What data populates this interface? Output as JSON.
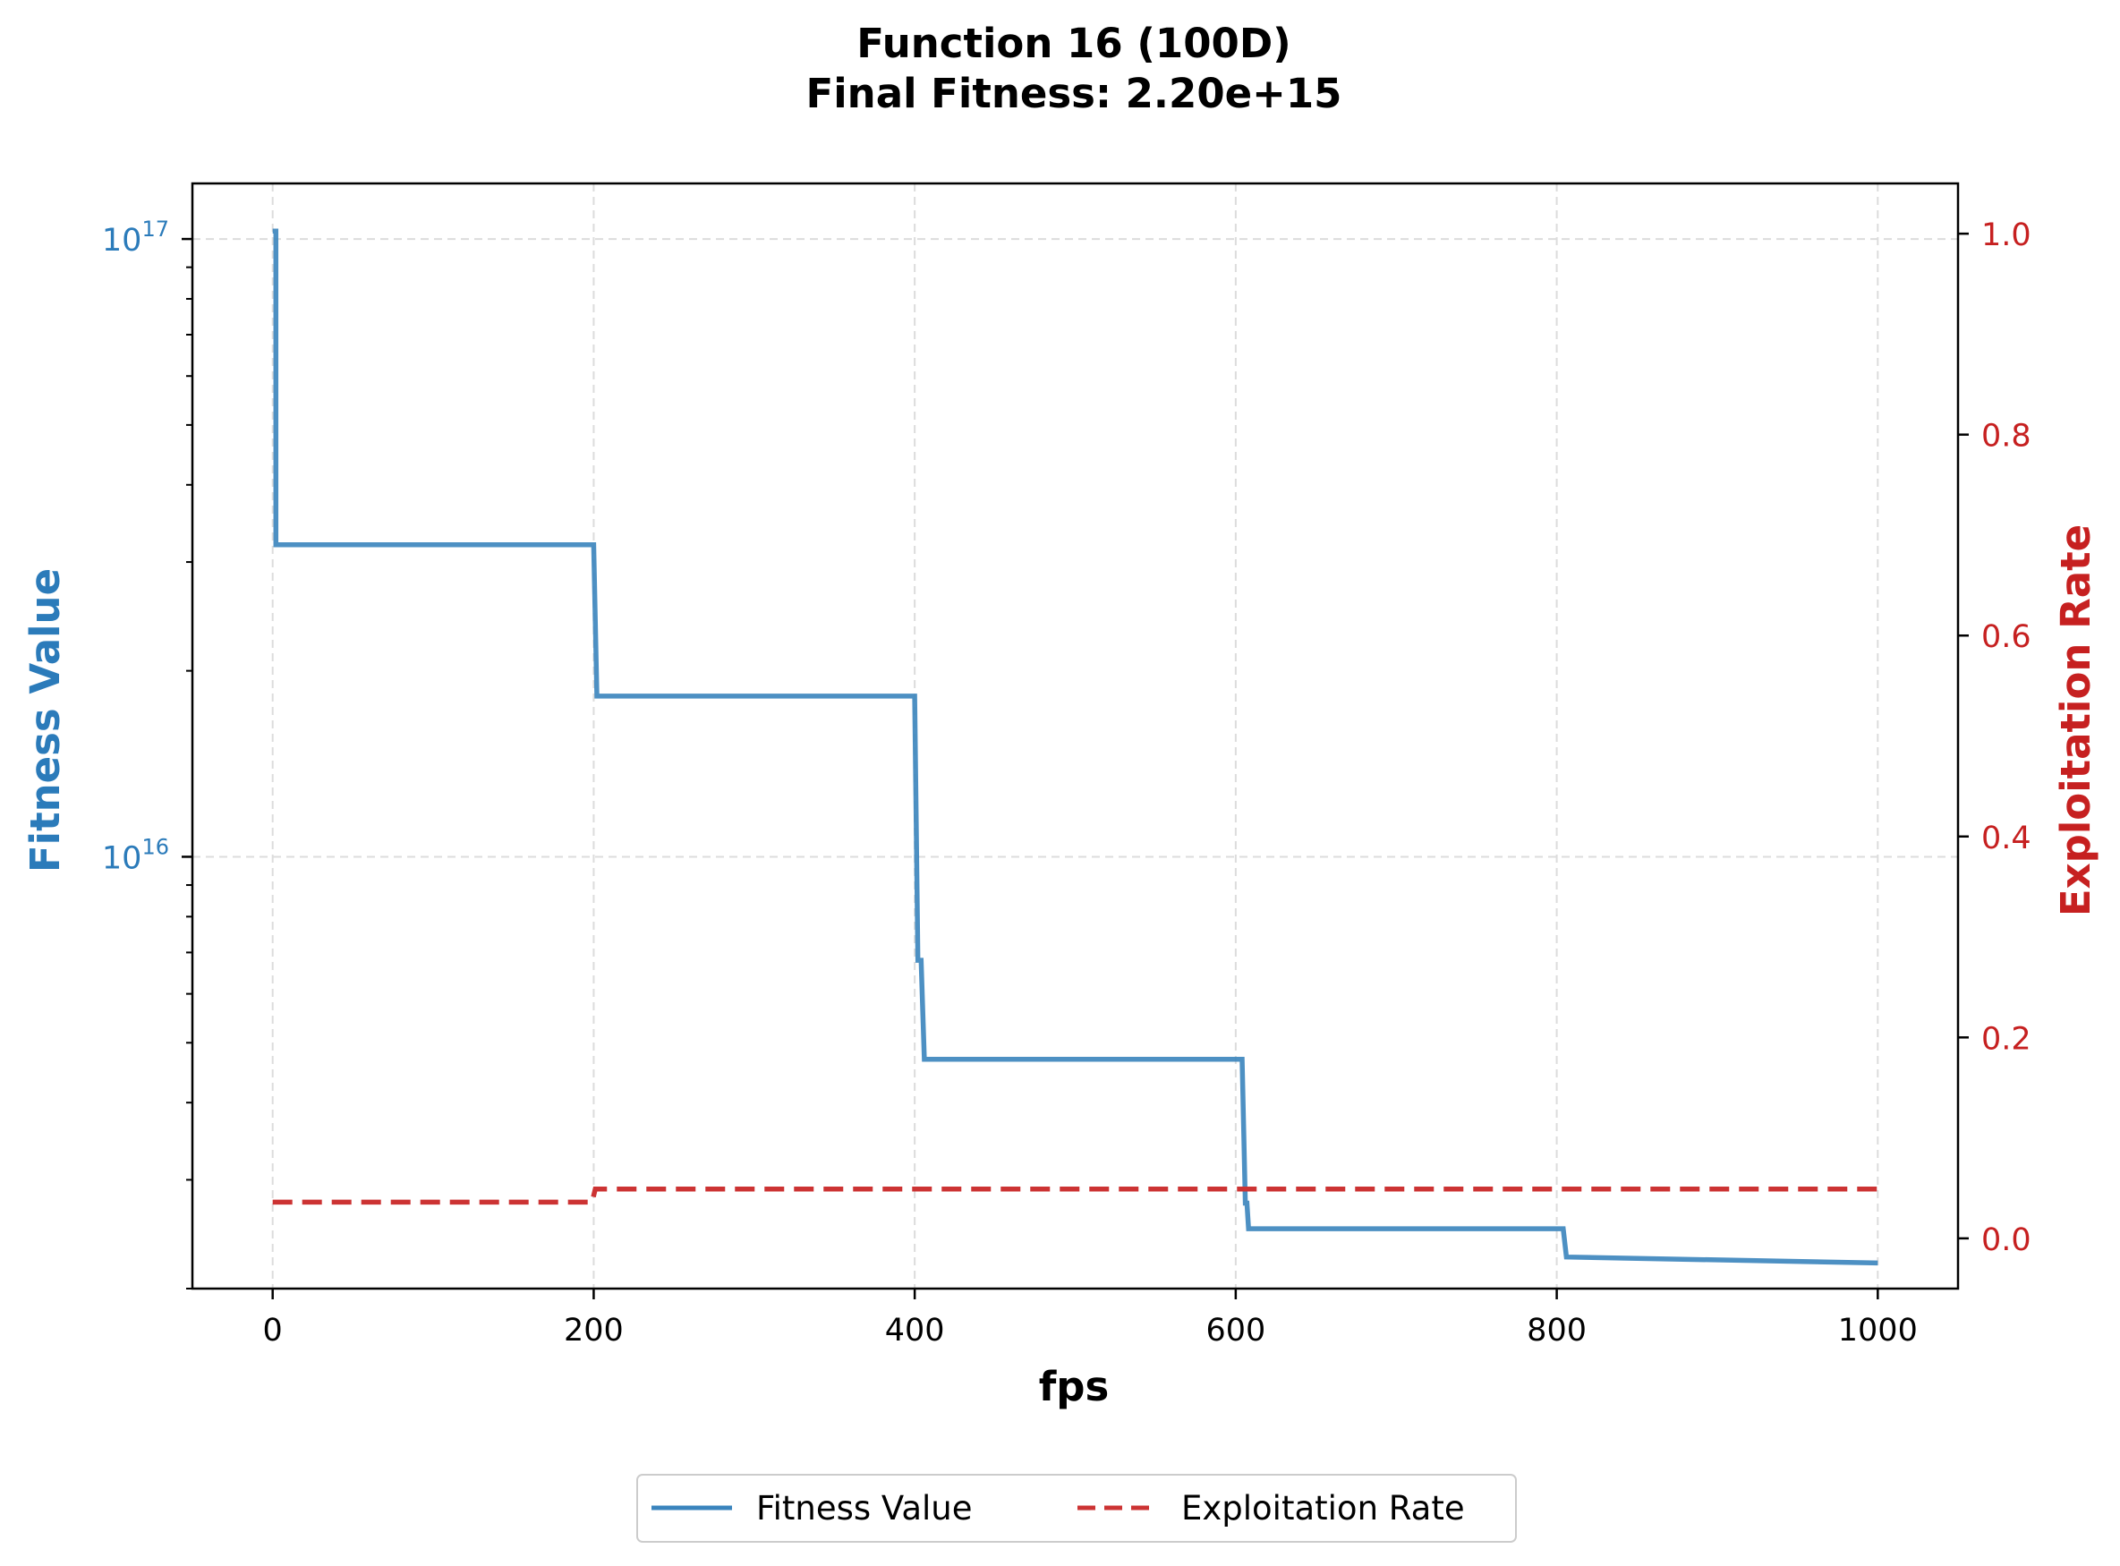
{
  "chart_data": {
    "type": "line",
    "title": "Function 16 (100D)",
    "subtitle": "Final Fitness: 2.20e+15",
    "xlabel": "fps",
    "ylabel_left": "Fitness Value",
    "ylabel_right": "Exploitation Rate",
    "xlim": [
      -50,
      1050
    ],
    "xticks": [
      0,
      200,
      400,
      600,
      800,
      1000
    ],
    "xtick_labels": [
      "0",
      "200",
      "400",
      "600",
      "800",
      "1000"
    ],
    "left_axis": {
      "scale": "log",
      "ylim": [
        2000000000000000.0,
        1.23e+17
      ],
      "major_ticks": [
        1e+16,
        1e+17
      ],
      "major_tick_labels": [
        {
          "base": "10",
          "exp": "16"
        },
        {
          "base": "10",
          "exp": "17"
        }
      ],
      "minor_ticks": [
        2000000000000000.0,
        3000000000000000.0,
        4000000000000000.0,
        5000000000000000.0,
        6000000000000000.0,
        7000000000000000.0,
        8000000000000000.0,
        9000000000000000.0,
        2e+16,
        3e+16,
        4e+16,
        5e+16,
        6e+16,
        7e+16,
        8e+16,
        9e+16
      ]
    },
    "right_axis": {
      "scale": "linear",
      "ylim": [
        -0.05,
        1.05
      ],
      "ticks": [
        0.0,
        0.2,
        0.4,
        0.6,
        0.8,
        1.0
      ],
      "tick_labels": [
        "0.0",
        "0.2",
        "0.4",
        "0.6",
        "0.8",
        "1.0"
      ]
    },
    "grid": true,
    "legend_position": "bottom-center",
    "series": [
      {
        "name": "Fitness Value",
        "axis": "left",
        "style": "solid",
        "color": "#3a84bd",
        "x": [
          0,
          2,
          2,
          200,
          202,
          202,
          400,
          402,
          402,
          404,
          406,
          406,
          604,
          606,
          606,
          607,
          608,
          608,
          804,
          806,
          806,
          1000
        ],
        "y": [
          1.03e+17,
          1.03e+17,
          3.2e+16,
          3.2e+16,
          1.82e+16,
          1.82e+16,
          1.82e+16,
          6800000000000000.0,
          6800000000000000.0,
          6800000000000000.0,
          4700000000000000.0,
          4700000000000000.0,
          4700000000000000.0,
          2750000000000000.0,
          2750000000000000.0,
          2750000000000000.0,
          2500000000000000.0,
          2500000000000000.0,
          2500000000000000.0,
          2250000000000000.0,
          2250000000000000.0,
          2200000000000000.0
        ]
      },
      {
        "name": "Exploitation Rate",
        "axis": "right",
        "style": "dashed",
        "color": "#cc3333",
        "x": [
          0,
          199,
          201,
          1000
        ],
        "y": [
          0.036,
          0.036,
          0.049,
          0.049
        ]
      }
    ],
    "colors": {
      "left_axis": "#2b7bba",
      "right_axis": "#c62020"
    }
  }
}
